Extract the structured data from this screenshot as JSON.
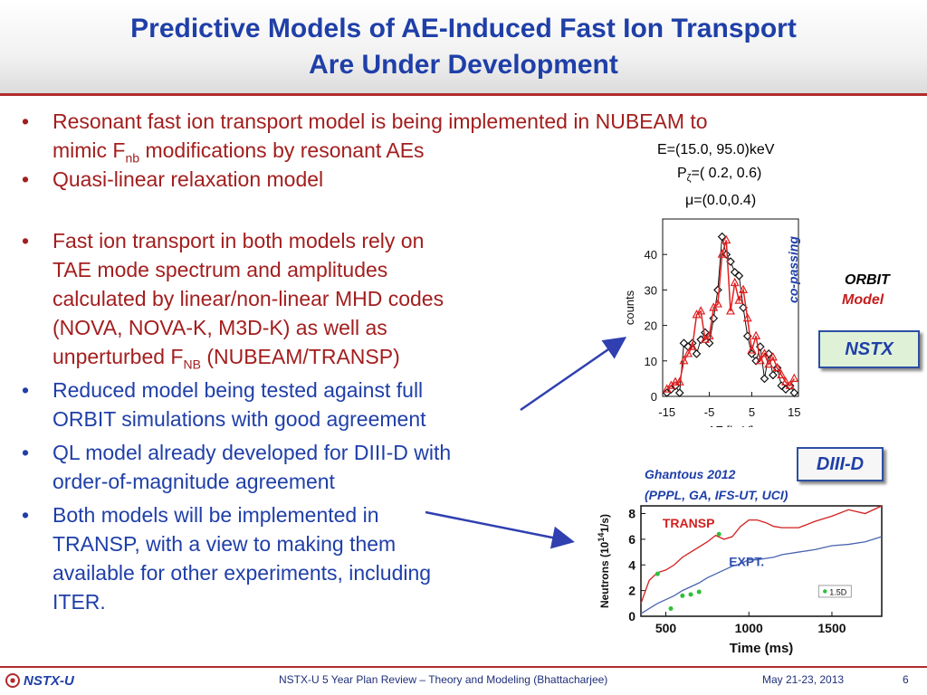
{
  "title": {
    "line1": "Predictive Models of AE-Induced Fast Ion Transport",
    "line2": "Are Under Development"
  },
  "bullets_top": [
    {
      "a": "Resonant fast ion transport model is being implemented in NUBEAM to",
      "b": "mimic F",
      "sub": "nb",
      "c": " modifications by resonant AEs"
    },
    {
      "text": "Quasi-linear relaxation model"
    }
  ],
  "bullets_main": [
    {
      "l1": "Fast ion transport in both models rely on",
      "l2": "TAE mode spectrum and amplitudes",
      "l3": "calculated by linear/non-linear MHD codes",
      "l4": "(NOVA, NOVA-K, M3D-K) as well as",
      "l5": "unperturbed F",
      "sub": "NB",
      "l5b": " (NUBEAM/TRANSP)"
    },
    {
      "l1": "Reduced model being tested against full",
      "l2": "ORBIT simulations with good agreement"
    },
    {
      "l1": "QL model already developed for DIII-D with",
      "l2": "order-of-magnitude agreement"
    },
    {
      "l1": "Both models will be implemented in",
      "l2": "TRANSP, with a view to making them",
      "l3": "available for other experiments, including",
      "l4": "ITER."
    }
  ],
  "nstx_panel": {
    "params": [
      "E=(15.0, 95.0)keV",
      "P",
      "=( 0.2, 0.6)",
      "μ=(0.0,0.4)"
    ],
    "p_sub": "ζ",
    "side_label": "co-passing",
    "orbit": "ORBIT",
    "model": "Model",
    "box": "NSTX"
  },
  "diiid_panel": {
    "box": "DIII-D",
    "credit1": "Ghantous 2012",
    "credit2": "(PPPL, GA, IFS-UT, UCI)",
    "transp": "TRANSP",
    "expt": "EXPT.",
    "legend": "1.5D"
  },
  "footer": {
    "logo": "NSTX-U",
    "center": "NSTX-U 5 Year Plan Review – Theory and Modeling (Bhattacharjee)",
    "date": "May 21-23, 2013",
    "page": "6"
  },
  "colors": {
    "title": "#1f3fa8",
    "red": "#a31e1e",
    "rule": "#b32b2b"
  },
  "chart_data": [
    {
      "type": "line",
      "xlabel": "ΔE [keV]",
      "ylabel": "counts",
      "xlim": [
        -16,
        16
      ],
      "ylim": [
        0,
        50
      ],
      "xticks": [
        -15,
        -5,
        5,
        15
      ],
      "yticks": [
        0,
        10,
        20,
        30,
        40
      ],
      "series": [
        {
          "name": "",
          "color": "#111111",
          "marker": "diamond",
          "x": [
            -15,
            -14,
            -13,
            -12,
            -11,
            -10,
            -9,
            -8,
            -7,
            -6,
            -5,
            -4,
            -3,
            -2,
            -1,
            0,
            1,
            2,
            3,
            4,
            5,
            6,
            7,
            8,
            9,
            10,
            11,
            12,
            13,
            14,
            15
          ],
          "y": [
            1,
            2,
            3,
            1,
            15,
            14,
            15,
            12,
            16,
            18,
            15,
            22,
            30,
            45,
            40,
            38,
            35,
            34,
            25,
            17,
            12,
            10,
            14,
            5,
            12,
            6,
            8,
            3,
            2,
            3,
            1
          ]
        },
        {
          "name": "",
          "color": "#e02020",
          "marker": "triangle",
          "x": [
            -15,
            -14,
            -13,
            -12,
            -11,
            -10,
            -9,
            -8,
            -7,
            -6,
            -5,
            -4,
            -3,
            -2,
            -1,
            0,
            1,
            2,
            3,
            4,
            5,
            6,
            7,
            8,
            9,
            10,
            11,
            12,
            13,
            14,
            15
          ],
          "y": [
            2,
            3,
            4,
            4,
            10,
            12,
            14,
            23,
            24,
            16,
            17,
            25,
            26,
            40,
            44,
            24,
            32,
            27,
            30,
            22,
            13,
            17,
            10,
            12,
            9,
            11,
            8,
            6,
            4,
            3,
            5
          ]
        }
      ]
    },
    {
      "type": "line",
      "xlabel": "Time (ms)",
      "ylabel": "Neutrons (10",
      "ylabel_sup": "14",
      "ylabel_end": "1/s)",
      "xlim": [
        350,
        1800
      ],
      "ylim": [
        0,
        8.6
      ],
      "xticks": [
        500,
        1000,
        1500
      ],
      "yticks": [
        0,
        2,
        4,
        6,
        8
      ],
      "series": [
        {
          "name": "TRANSP",
          "color": "#d21f1f",
          "x": [
            350,
            400,
            450,
            500,
            550,
            600,
            650,
            700,
            750,
            800,
            850,
            900,
            950,
            1000,
            1050,
            1100,
            1150,
            1200,
            1300,
            1400,
            1500,
            1600,
            1700,
            1800
          ],
          "y": [
            1.0,
            2.8,
            3.4,
            3.6,
            4.0,
            4.6,
            5.0,
            5.4,
            5.8,
            6.3,
            6.0,
            6.2,
            7.0,
            7.5,
            7.5,
            7.3,
            7.0,
            6.9,
            6.9,
            7.4,
            7.8,
            8.3,
            8.0,
            8.6
          ]
        },
        {
          "name": "EXPT.",
          "color": "#4a64b0",
          "x": [
            350,
            400,
            450,
            500,
            550,
            600,
            650,
            700,
            750,
            800,
            850,
            900,
            950,
            1000,
            1050,
            1100,
            1150,
            1200,
            1300,
            1400,
            1500,
            1600,
            1700,
            1800
          ],
          "y": [
            0.2,
            0.6,
            1.0,
            1.3,
            1.6,
            2.0,
            2.3,
            2.6,
            3.0,
            3.3,
            3.6,
            3.9,
            4.1,
            4.4,
            4.4,
            4.5,
            4.6,
            4.8,
            5.0,
            5.2,
            5.5,
            5.6,
            5.8,
            6.2
          ]
        },
        {
          "name": "1.5D",
          "color": "#2fbf3a",
          "marker": "dot",
          "x": [
            450,
            530,
            600,
            650,
            700,
            820
          ],
          "y": [
            3.3,
            0.6,
            1.6,
            1.7,
            1.9,
            6.4
          ]
        }
      ]
    }
  ]
}
